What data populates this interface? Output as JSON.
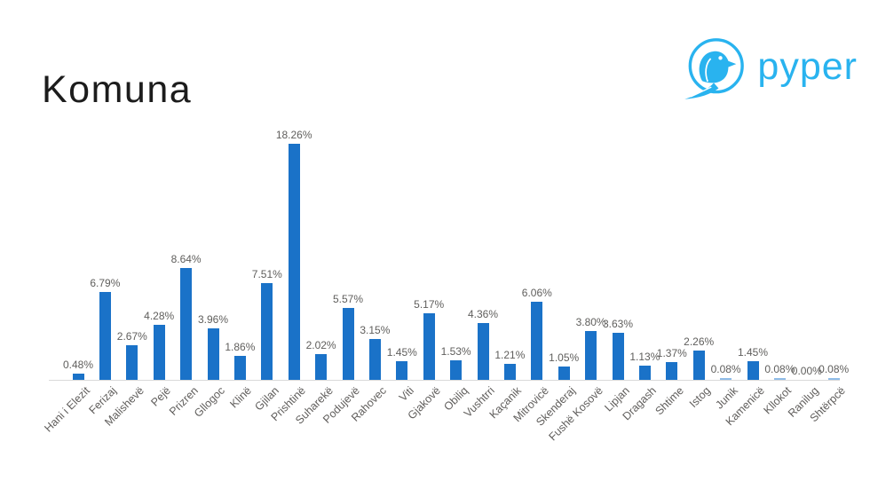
{
  "header": {
    "title": "Komuna"
  },
  "logo": {
    "brand": "pyper",
    "color": "#29B3EF"
  },
  "chart_data": {
    "type": "bar",
    "title": "Komuna",
    "categories": [
      "Hani i Elezit",
      "Ferizaj",
      "Malishevë",
      "Pejë",
      "Prizren",
      "Gllogoc",
      "Klinë",
      "Gjilan",
      "Prishtinë",
      "Suharekë",
      "Podujevë",
      "Rahovec",
      "Viti",
      "Gjakovë",
      "Obiliq",
      "Vushtrri",
      "Kaçanik",
      "Mitrovicë",
      "Skenderaj",
      "Fushë Kosovë",
      "Lipjan",
      "Dragash",
      "Shtime",
      "Istog",
      "Junik",
      "Kamenicë",
      "Kllokot",
      "Ranilug",
      "Shtërpcë"
    ],
    "values": [
      0.48,
      6.79,
      2.67,
      4.28,
      8.64,
      3.96,
      1.86,
      7.51,
      18.26,
      2.02,
      5.57,
      3.15,
      1.45,
      5.17,
      1.53,
      4.36,
      1.21,
      6.06,
      1.05,
      3.8,
      3.63,
      1.13,
      1.37,
      2.26,
      0.08,
      1.45,
      0.08,
      0.0,
      0.08
    ],
    "value_labels": [
      "0.48%",
      "6.79%",
      "2.67%",
      "4.28%",
      "8.64%",
      "3.96%",
      "1.86%",
      "7.51%",
      "18.26%",
      "2.02%",
      "5.57%",
      "3.15%",
      "1.45%",
      "5.17%",
      "1.53%",
      "4.36%",
      "1.21%",
      "6.06%",
      "1.05%",
      "3.80%",
      "3.63%",
      "1.13%",
      "1.37%",
      "2.26%",
      "0.08%",
      "1.45%",
      "0.08%",
      "0.00%",
      "0.08%"
    ],
    "xlabel": "",
    "ylabel": "",
    "ylim": [
      0,
      19
    ],
    "grid": false,
    "legend": "none",
    "bar_color": "#1A72C8",
    "small_bar_color": "#8FBCE8",
    "value_label_color": "#5F5E5C",
    "category_label_color": "#605E5C",
    "axis_line_color": "#D9D9D9"
  }
}
